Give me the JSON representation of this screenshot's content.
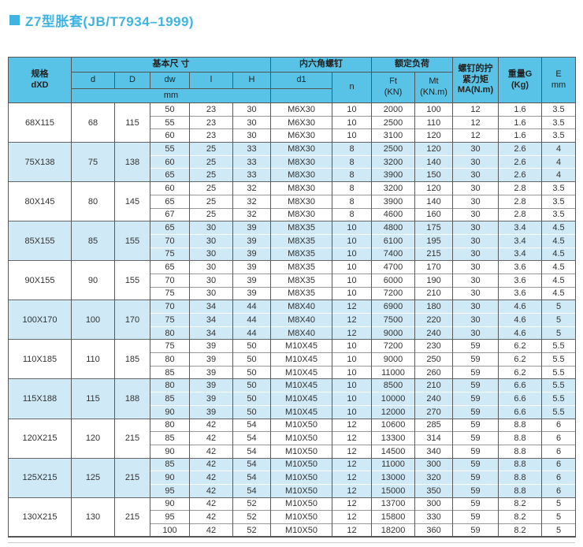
{
  "page": {
    "title": "Z7型胀套(JB/T7934–1999)"
  },
  "colors": {
    "accent_blue": "#41b3e1",
    "header_bg": "#58c3e7",
    "shaded_row_bg": "#cfe9f6",
    "border": "#5a5a5a"
  },
  "table": {
    "header": {
      "spec": [
        "规格",
        "dXD"
      ],
      "basic_dims": "基本尺 寸",
      "d": "d",
      "D": "D",
      "dw": "dw",
      "l": "l",
      "H": "H",
      "unit_mm": "mm",
      "hex_screw": "内六角螺钉",
      "d1": "d1",
      "n": "n",
      "rated_load": "额定负荷",
      "ft": [
        "Ft",
        "(KN)"
      ],
      "mt": [
        "Mt",
        "(KN.m)"
      ],
      "torque": [
        "螺钉的拧",
        "紧力矩",
        "MA(N.m)"
      ],
      "weight": [
        "重量G",
        "(Kg)"
      ],
      "e": [
        "E",
        "mm"
      ]
    },
    "groups": [
      {
        "spec": "68X115",
        "d": 68,
        "D": 115,
        "shaded": false,
        "rows": [
          {
            "dw": 50,
            "l": 23,
            "H": 30,
            "d1": "M6X30",
            "n": 10,
            "ft": 2000,
            "mt": 100,
            "ma": 12,
            "g": 1.6,
            "e": 3.5
          },
          {
            "dw": 55,
            "l": 23,
            "H": 30,
            "d1": "M6X30",
            "n": 10,
            "ft": 2500,
            "mt": 110,
            "ma": 12,
            "g": 1.6,
            "e": 3.5
          },
          {
            "dw": 60,
            "l": 23,
            "H": 30,
            "d1": "M6X30",
            "n": 10,
            "ft": 3100,
            "mt": 120,
            "ma": 12,
            "g": 1.6,
            "e": 3.5
          }
        ]
      },
      {
        "spec": "75X138",
        "d": 75,
        "D": 138,
        "shaded": true,
        "rows": [
          {
            "dw": 55,
            "l": 25,
            "H": 33,
            "d1": "M8X30",
            "n": 8,
            "ft": 2500,
            "mt": 120,
            "ma": 30,
            "g": 2.6,
            "e": 4
          },
          {
            "dw": 60,
            "l": 25,
            "H": 33,
            "d1": "M8X30",
            "n": 8,
            "ft": 3200,
            "mt": 140,
            "ma": 30,
            "g": 2.6,
            "e": 4
          },
          {
            "dw": 65,
            "l": 25,
            "H": 33,
            "d1": "M8X30",
            "n": 8,
            "ft": 3900,
            "mt": 150,
            "ma": 30,
            "g": 2.6,
            "e": 4
          }
        ]
      },
      {
        "spec": "80X145",
        "d": 80,
        "D": 145,
        "shaded": false,
        "rows": [
          {
            "dw": 60,
            "l": 25,
            "H": 32,
            "d1": "M8X30",
            "n": 8,
            "ft": 3200,
            "mt": 120,
            "ma": 30,
            "g": 2.8,
            "e": 3.5
          },
          {
            "dw": 65,
            "l": 25,
            "H": 32,
            "d1": "M8X30",
            "n": 8,
            "ft": 3900,
            "mt": 140,
            "ma": 30,
            "g": 2.8,
            "e": 3.5
          },
          {
            "dw": 67,
            "l": 25,
            "H": 32,
            "d1": "M8X30",
            "n": 8,
            "ft": 4600,
            "mt": 160,
            "ma": 30,
            "g": 2.8,
            "e": 3.5
          }
        ]
      },
      {
        "spec": "85X155",
        "d": 85,
        "D": 155,
        "shaded": true,
        "rows": [
          {
            "dw": 65,
            "l": 30,
            "H": 39,
            "d1": "M8X35",
            "n": 10,
            "ft": 4800,
            "mt": 175,
            "ma": 30,
            "g": 3.4,
            "e": 4.5
          },
          {
            "dw": 70,
            "l": 30,
            "H": 39,
            "d1": "M8X35",
            "n": 10,
            "ft": 6100,
            "mt": 195,
            "ma": 30,
            "g": 3.4,
            "e": 4.5
          },
          {
            "dw": 75,
            "l": 30,
            "H": 39,
            "d1": "M8X35",
            "n": 10,
            "ft": 7400,
            "mt": 215,
            "ma": 30,
            "g": 3.4,
            "e": 4.5
          }
        ]
      },
      {
        "spec": "90X155",
        "d": 90,
        "D": 155,
        "shaded": false,
        "rows": [
          {
            "dw": 65,
            "l": 30,
            "H": 39,
            "d1": "M8X35",
            "n": 10,
            "ft": 4700,
            "mt": 170,
            "ma": 30,
            "g": 3.6,
            "e": 4.5
          },
          {
            "dw": 70,
            "l": 30,
            "H": 39,
            "d1": "M8X35",
            "n": 10,
            "ft": 6000,
            "mt": 190,
            "ma": 30,
            "g": 3.6,
            "e": 4.5
          },
          {
            "dw": 75,
            "l": 30,
            "H": 39,
            "d1": "M8X35",
            "n": 10,
            "ft": 7200,
            "mt": 210,
            "ma": 30,
            "g": 3.6,
            "e": 4.5
          }
        ]
      },
      {
        "spec": "100X170",
        "d": 100,
        "D": 170,
        "shaded": true,
        "rows": [
          {
            "dw": 70,
            "l": 34,
            "H": 44,
            "d1": "M8X40",
            "n": 12,
            "ft": 6900,
            "mt": 180,
            "ma": 30,
            "g": 4.6,
            "e": 5
          },
          {
            "dw": 75,
            "l": 34,
            "H": 44,
            "d1": "M8X40",
            "n": 12,
            "ft": 7500,
            "mt": 220,
            "ma": 30,
            "g": 4.6,
            "e": 5
          },
          {
            "dw": 80,
            "l": 34,
            "H": 44,
            "d1": "M8X40",
            "n": 12,
            "ft": 9000,
            "mt": 240,
            "ma": 30,
            "g": 4.6,
            "e": 5
          }
        ]
      },
      {
        "spec": "110X185",
        "d": 110,
        "D": 185,
        "shaded": false,
        "rows": [
          {
            "dw": 75,
            "l": 39,
            "H": 50,
            "d1": "M10X45",
            "n": 10,
            "ft": 7200,
            "mt": 230,
            "ma": 59,
            "g": 6.2,
            "e": 5.5
          },
          {
            "dw": 80,
            "l": 39,
            "H": 50,
            "d1": "M10X45",
            "n": 10,
            "ft": 9000,
            "mt": 250,
            "ma": 59,
            "g": 6.2,
            "e": 5.5
          },
          {
            "dw": 85,
            "l": 39,
            "H": 50,
            "d1": "M10X45",
            "n": 10,
            "ft": 11000,
            "mt": 260,
            "ma": 59,
            "g": 6.2,
            "e": 5.5
          }
        ]
      },
      {
        "spec": "115X188",
        "d": 115,
        "D": 188,
        "shaded": true,
        "rows": [
          {
            "dw": 80,
            "l": 39,
            "H": 50,
            "d1": "M10X45",
            "n": 10,
            "ft": 8500,
            "mt": 210,
            "ma": 59,
            "g": 6.6,
            "e": 5.5
          },
          {
            "dw": 85,
            "l": 39,
            "H": 50,
            "d1": "M10X45",
            "n": 10,
            "ft": 10000,
            "mt": 240,
            "ma": 59,
            "g": 6.6,
            "e": 5.5
          },
          {
            "dw": 90,
            "l": 39,
            "H": 50,
            "d1": "M10X45",
            "n": 10,
            "ft": 12000,
            "mt": 270,
            "ma": 59,
            "g": 6.6,
            "e": 5.5
          }
        ]
      },
      {
        "spec": "120X215",
        "d": 120,
        "D": 215,
        "shaded": false,
        "rows": [
          {
            "dw": 80,
            "l": 42,
            "H": 54,
            "d1": "M10X50",
            "n": 12,
            "ft": 10600,
            "mt": 285,
            "ma": 59,
            "g": 8.8,
            "e": 6
          },
          {
            "dw": 85,
            "l": 42,
            "H": 54,
            "d1": "M10X50",
            "n": 12,
            "ft": 13300,
            "mt": 314,
            "ma": 59,
            "g": 8.8,
            "e": 6
          },
          {
            "dw": 90,
            "l": 42,
            "H": 54,
            "d1": "M10X50",
            "n": 12,
            "ft": 14500,
            "mt": 340,
            "ma": 59,
            "g": 8.8,
            "e": 6
          }
        ]
      },
      {
        "spec": "125X215",
        "d": 125,
        "D": 215,
        "shaded": true,
        "rows": [
          {
            "dw": 85,
            "l": 42,
            "H": 54,
            "d1": "M10X50",
            "n": 12,
            "ft": 11000,
            "mt": 300,
            "ma": 59,
            "g": 8.8,
            "e": 6
          },
          {
            "dw": 90,
            "l": 42,
            "H": 54,
            "d1": "M10X50",
            "n": 12,
            "ft": 13000,
            "mt": 320,
            "ma": 59,
            "g": 8.8,
            "e": 6
          },
          {
            "dw": 95,
            "l": 42,
            "H": 54,
            "d1": "M10X50",
            "n": 12,
            "ft": 15000,
            "mt": 350,
            "ma": 59,
            "g": 8.8,
            "e": 6
          }
        ]
      },
      {
        "spec": "130X215",
        "d": 130,
        "D": 215,
        "shaded": false,
        "rows": [
          {
            "dw": 90,
            "l": 42,
            "H": 52,
            "d1": "M10X50",
            "n": 12,
            "ft": 13700,
            "mt": 300,
            "ma": 59,
            "g": 8.2,
            "e": 5
          },
          {
            "dw": 95,
            "l": 42,
            "H": 52,
            "d1": "M10X50",
            "n": 12,
            "ft": 15800,
            "mt": 330,
            "ma": 59,
            "g": 8.2,
            "e": 5
          },
          {
            "dw": 100,
            "l": 42,
            "H": 52,
            "d1": "M10X50",
            "n": 12,
            "ft": 18200,
            "mt": 360,
            "ma": 59,
            "g": 8.2,
            "e": 5
          }
        ]
      }
    ]
  }
}
